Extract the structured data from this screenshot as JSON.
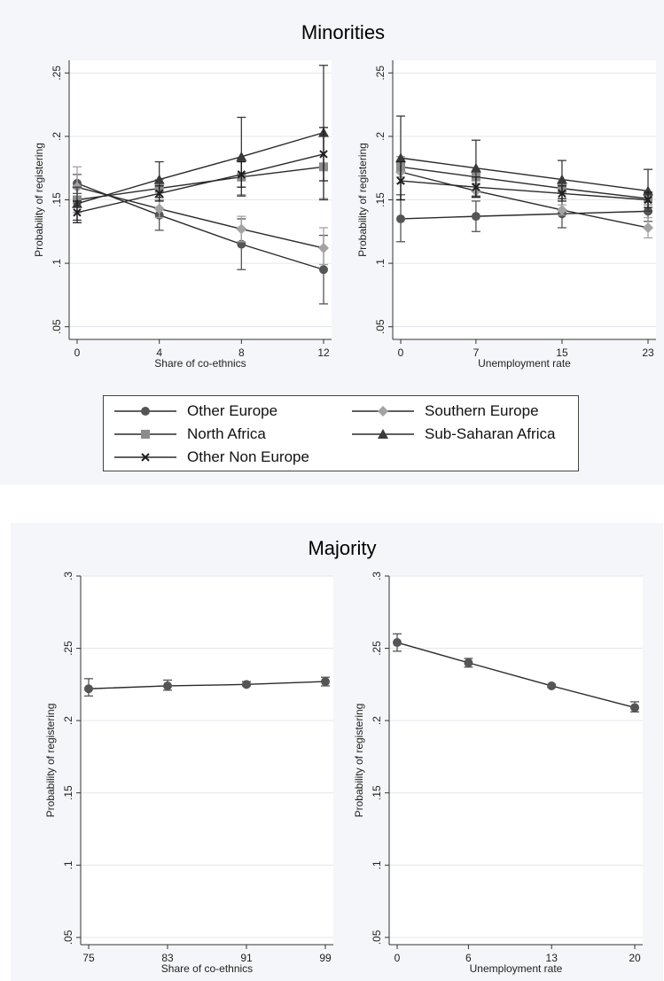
{
  "colors": {
    "background_panel": "#f5f6f9",
    "plot_bg": "#ffffff",
    "grid": "#e3e6ec",
    "other_europe": "#555555",
    "southern_europe": "#a3a3a3",
    "north_africa": "#8c8c8c",
    "sub_saharan_africa": "#3a3a3a",
    "other_non_europe": "#1f1f1f",
    "majority": "#555555"
  },
  "titles": {
    "minorities": "Minorities",
    "majority": "Majority"
  },
  "legend": [
    {
      "name": "Other Europe",
      "marker": "circle",
      "color_key": "other_europe"
    },
    {
      "name": "Southern Europe",
      "marker": "diamond",
      "color_key": "southern_europe"
    },
    {
      "name": "North Africa",
      "marker": "square",
      "color_key": "north_africa"
    },
    {
      "name": "Sub-Saharan Africa",
      "marker": "triangle",
      "color_key": "sub_saharan_africa"
    },
    {
      "name": "Other Non Europe",
      "marker": "x",
      "color_key": "other_non_europe"
    }
  ],
  "chart_data": [
    {
      "type": "line",
      "group": "Minorities",
      "xlabel": "Share of co-ethnics",
      "ylabel": "Probability of registering",
      "x": [
        0,
        4,
        8,
        12
      ],
      "x_ticks": [
        "0",
        "4",
        "8",
        "12"
      ],
      "ylim": [
        0.04,
        0.26
      ],
      "y_ticks": [
        0.05,
        0.1,
        0.15,
        0.2,
        0.25
      ],
      "y_tick_labels": [
        ".05",
        ".1",
        ".15",
        ".2",
        ".25"
      ],
      "grid": true,
      "series": [
        {
          "name": "Other Europe",
          "marker": "circle",
          "color_key": "other_europe",
          "values": [
            0.163,
            0.138,
            0.115,
            0.095
          ],
          "lower": [
            0.155,
            0.126,
            0.095,
            0.068
          ],
          "upper": [
            0.17,
            0.15,
            0.135,
            0.122
          ]
        },
        {
          "name": "Southern Europe",
          "marker": "diamond",
          "color_key": "southern_europe",
          "values": [
            0.16,
            0.143,
            0.127,
            0.112
          ],
          "lower": [
            0.15,
            0.136,
            0.117,
            0.099
          ],
          "upper": [
            0.176,
            0.15,
            0.137,
            0.128
          ]
        },
        {
          "name": "North Africa",
          "marker": "square",
          "color_key": "north_africa",
          "values": [
            0.15,
            0.159,
            0.168,
            0.176
          ],
          "lower": [
            0.14,
            0.152,
            0.154,
            0.151
          ],
          "upper": [
            0.159,
            0.166,
            0.182,
            0.201
          ]
        },
        {
          "name": "Sub-Saharan Africa",
          "marker": "triangle",
          "color_key": "sub_saharan_africa",
          "values": [
            0.147,
            0.166,
            0.184,
            0.203
          ],
          "lower": [
            0.134,
            0.152,
            0.153,
            0.15
          ],
          "upper": [
            0.16,
            0.18,
            0.215,
            0.256
          ]
        },
        {
          "name": "Other Non Europe",
          "marker": "x",
          "color_key": "other_non_europe",
          "values": [
            0.14,
            0.155,
            0.17,
            0.186
          ],
          "lower": [
            0.132,
            0.149,
            0.16,
            0.165
          ],
          "upper": [
            0.149,
            0.161,
            0.18,
            0.207
          ]
        }
      ]
    },
    {
      "type": "line",
      "group": "Minorities",
      "xlabel": "Unemployment rate",
      "ylabel": "Probability of registering",
      "x": [
        0,
        7,
        15,
        23
      ],
      "x_ticks": [
        "0",
        "7",
        "15",
        "23"
      ],
      "ylim": [
        0.04,
        0.26
      ],
      "y_ticks": [
        0.05,
        0.1,
        0.15,
        0.2,
        0.25
      ],
      "y_tick_labels": [
        ".05",
        ".1",
        ".15",
        ".2",
        ".25"
      ],
      "grid": true,
      "series": [
        {
          "name": "Other Europe",
          "marker": "circle",
          "color_key": "other_europe",
          "values": [
            0.135,
            0.137,
            0.139,
            0.141
          ],
          "lower": [
            0.117,
            0.125,
            0.128,
            0.133
          ],
          "upper": [
            0.154,
            0.149,
            0.151,
            0.149
          ]
        },
        {
          "name": "Southern Europe",
          "marker": "diamond",
          "color_key": "southern_europe",
          "values": [
            0.172,
            0.157,
            0.142,
            0.128
          ],
          "lower": [
            0.163,
            0.152,
            0.138,
            0.12
          ],
          "upper": [
            0.181,
            0.162,
            0.146,
            0.136
          ]
        },
        {
          "name": "North Africa",
          "marker": "square",
          "color_key": "north_africa",
          "values": [
            0.176,
            0.168,
            0.159,
            0.151
          ],
          "lower": [
            0.168,
            0.163,
            0.155,
            0.146
          ],
          "upper": [
            0.184,
            0.173,
            0.163,
            0.156
          ]
        },
        {
          "name": "Sub-Saharan Africa",
          "marker": "triangle",
          "color_key": "sub_saharan_africa",
          "values": [
            0.183,
            0.175,
            0.166,
            0.157
          ],
          "lower": [
            0.15,
            0.153,
            0.151,
            0.141
          ],
          "upper": [
            0.216,
            0.197,
            0.181,
            0.174
          ]
        },
        {
          "name": "Other Non Europe",
          "marker": "x",
          "color_key": "other_non_europe",
          "values": [
            0.165,
            0.16,
            0.155,
            0.15
          ],
          "lower": [
            0.15,
            0.152,
            0.149,
            0.144
          ],
          "upper": [
            0.18,
            0.168,
            0.161,
            0.156
          ]
        }
      ]
    },
    {
      "type": "line",
      "group": "Majority",
      "xlabel": "Share of co-ethnics",
      "ylabel": "Probability of registering",
      "x": [
        75,
        83,
        91,
        99
      ],
      "x_ticks": [
        "75",
        "83",
        "91",
        "99"
      ],
      "ylim": [
        0.045,
        0.3
      ],
      "y_ticks": [
        0.05,
        0.1,
        0.15,
        0.2,
        0.25,
        0.3
      ],
      "y_tick_labels": [
        ".05",
        ".1",
        ".15",
        ".2",
        ".25",
        ".3"
      ],
      "grid": true,
      "series": [
        {
          "marker": "circle",
          "color_key": "majority",
          "values": [
            0.222,
            0.224,
            0.225,
            0.227
          ],
          "lower": [
            0.217,
            0.221,
            0.224,
            0.224
          ],
          "upper": [
            0.229,
            0.228,
            0.227,
            0.23
          ]
        }
      ]
    },
    {
      "type": "line",
      "group": "Majority",
      "xlabel": "Unemployment rate",
      "ylabel": "Probability of registering",
      "x": [
        0,
        6,
        13,
        20
      ],
      "x_ticks": [
        "0",
        "6",
        "13",
        "20"
      ],
      "ylim": [
        0.045,
        0.3
      ],
      "y_ticks": [
        0.05,
        0.1,
        0.15,
        0.2,
        0.25,
        0.3
      ],
      "y_tick_labels": [
        ".05",
        ".1",
        ".15",
        ".2",
        ".25",
        ".3"
      ],
      "grid": true,
      "series": [
        {
          "marker": "circle",
          "color_key": "majority",
          "values": [
            0.254,
            0.24,
            0.224,
            0.209
          ],
          "lower": [
            0.248,
            0.237,
            0.223,
            0.206
          ],
          "upper": [
            0.26,
            0.243,
            0.225,
            0.213
          ]
        }
      ]
    }
  ]
}
